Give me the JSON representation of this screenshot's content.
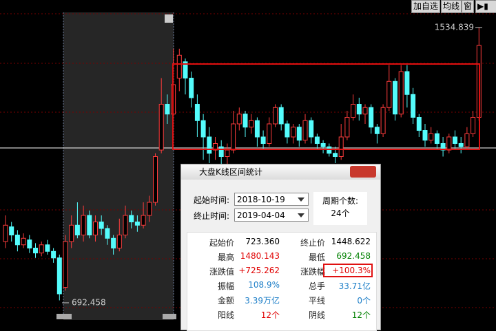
{
  "chart_data": {
    "type": "candlestick",
    "up_color": "#ff3c3c",
    "down_color": "#54fcfc",
    "ylim": [
      640,
      1619
    ],
    "open": [
      880,
      925,
      900,
      870,
      885,
      860,
      845,
      870,
      850,
      830,
      740,
      880,
      930,
      900,
      960,
      900,
      940,
      920,
      890,
      860,
      900,
      960,
      940,
      930,
      960,
      1000,
      1160,
      1300,
      1270,
      1380,
      1430,
      1380,
      1300,
      1250,
      1200,
      1160,
      1170,
      1140,
      1160,
      1240,
      1270,
      1230,
      1250,
      1200,
      1180,
      1240,
      1290,
      1240,
      1200,
      1230,
      1190,
      1250,
      1200,
      1180,
      1170,
      1150,
      1140,
      1200,
      1260,
      1300,
      1270,
      1290,
      1230,
      1210,
      1290,
      1370,
      1270,
      1400,
      1330,
      1260,
      1220,
      1190,
      1210,
      1180,
      1160,
      1200,
      1180,
      1170,
      1210,
      1260
    ],
    "high": [
      960,
      940,
      915,
      905,
      900,
      875,
      880,
      885,
      860,
      840,
      900,
      960,
      1000,
      990,
      975,
      960,
      960,
      930,
      900,
      950,
      990,
      975,
      960,
      1000,
      1020,
      1150,
      1380,
      1330,
      1470,
      1470,
      1440,
      1400,
      1330,
      1270,
      1230,
      1200,
      1190,
      1180,
      1280,
      1290,
      1280,
      1270,
      1260,
      1220,
      1260,
      1300,
      1300,
      1250,
      1240,
      1240,
      1270,
      1260,
      1210,
      1190,
      1180,
      1170,
      1240,
      1280,
      1330,
      1320,
      1300,
      1300,
      1240,
      1300,
      1420,
      1380,
      1420,
      1420,
      1350,
      1270,
      1240,
      1230,
      1220,
      1200,
      1210,
      1220,
      1200,
      1230,
      1280,
      1534.839
    ],
    "low": [
      860,
      880,
      850,
      860,
      845,
      830,
      835,
      840,
      815,
      700,
      730,
      860,
      890,
      880,
      890,
      880,
      900,
      870,
      840,
      850,
      890,
      920,
      910,
      920,
      940,
      990,
      1150,
      1240,
      1260,
      1340,
      1330,
      1290,
      1200,
      1130,
      1120,
      1130,
      1110,
      1110,
      1150,
      1220,
      1200,
      1210,
      1170,
      1160,
      1170,
      1230,
      1220,
      1180,
      1180,
      1170,
      1180,
      1180,
      1160,
      1150,
      1140,
      1120,
      1130,
      1190,
      1250,
      1250,
      1240,
      1210,
      1180,
      1200,
      1280,
      1250,
      1260,
      1290,
      1240,
      1200,
      1170,
      1180,
      1160,
      1140,
      1150,
      1160,
      1150,
      1160,
      1200,
      1250
    ],
    "close": [
      930,
      900,
      870,
      890,
      860,
      845,
      870,
      850,
      830,
      720,
      880,
      930,
      900,
      960,
      900,
      940,
      920,
      890,
      860,
      900,
      960,
      940,
      930,
      960,
      1000,
      1140,
      1300,
      1270,
      1360,
      1450,
      1380,
      1320,
      1250,
      1200,
      1150,
      1180,
      1140,
      1160,
      1240,
      1270,
      1230,
      1250,
      1200,
      1180,
      1240,
      1290,
      1240,
      1200,
      1230,
      1190,
      1250,
      1200,
      1180,
      1170,
      1150,
      1140,
      1200,
      1260,
      1300,
      1270,
      1290,
      1230,
      1210,
      1290,
      1370,
      1270,
      1400,
      1330,
      1260,
      1220,
      1190,
      1210,
      1180,
      1160,
      1200,
      1180,
      1170,
      1210,
      1260,
      1480
    ],
    "high_marker": 1534.839,
    "low_marker": 692.458
  },
  "toolbar": [
    "加自选",
    "均线",
    "窗"
  ],
  "dialog": {
    "title": "大盘K线区间统计",
    "start_label": "起始时间:",
    "start": "2018-10-19",
    "end_label": "终止时间:",
    "end": "2019-04-04",
    "period_label": "周期个数:",
    "periods": "24个",
    "stats": [
      [
        {
          "label": "起始价",
          "value": "723.360",
          "color": "#000"
        },
        {
          "label": "终止价",
          "value": "1448.622",
          "color": "#000"
        }
      ],
      [
        {
          "label": "最高",
          "value": "1480.143",
          "color": "#e00000"
        },
        {
          "label": "最低",
          "value": "692.458",
          "color": "#008000"
        }
      ],
      [
        {
          "label": "涨跌值",
          "value": "+725.262",
          "color": "#e00000"
        },
        {
          "label": "涨跌幅",
          "value": "+100.3%",
          "color": "#e00000"
        }
      ],
      [
        {
          "label": "振幅",
          "value": "108.9%",
          "color": "#1e7fc8"
        },
        {
          "label": "总手",
          "value": "33.71亿",
          "color": "#1e7fc8"
        }
      ],
      [
        {
          "label": "金额",
          "value": "3.39万亿",
          "color": "#1e7fc8"
        },
        {
          "label": "平线",
          "value": "0个",
          "color": "#1e7fc8"
        }
      ],
      [
        {
          "label": "阳线",
          "value": "12个",
          "color": "#e00000"
        },
        {
          "label": "阴线",
          "value": "12个",
          "color": "#008000"
        }
      ]
    ]
  }
}
